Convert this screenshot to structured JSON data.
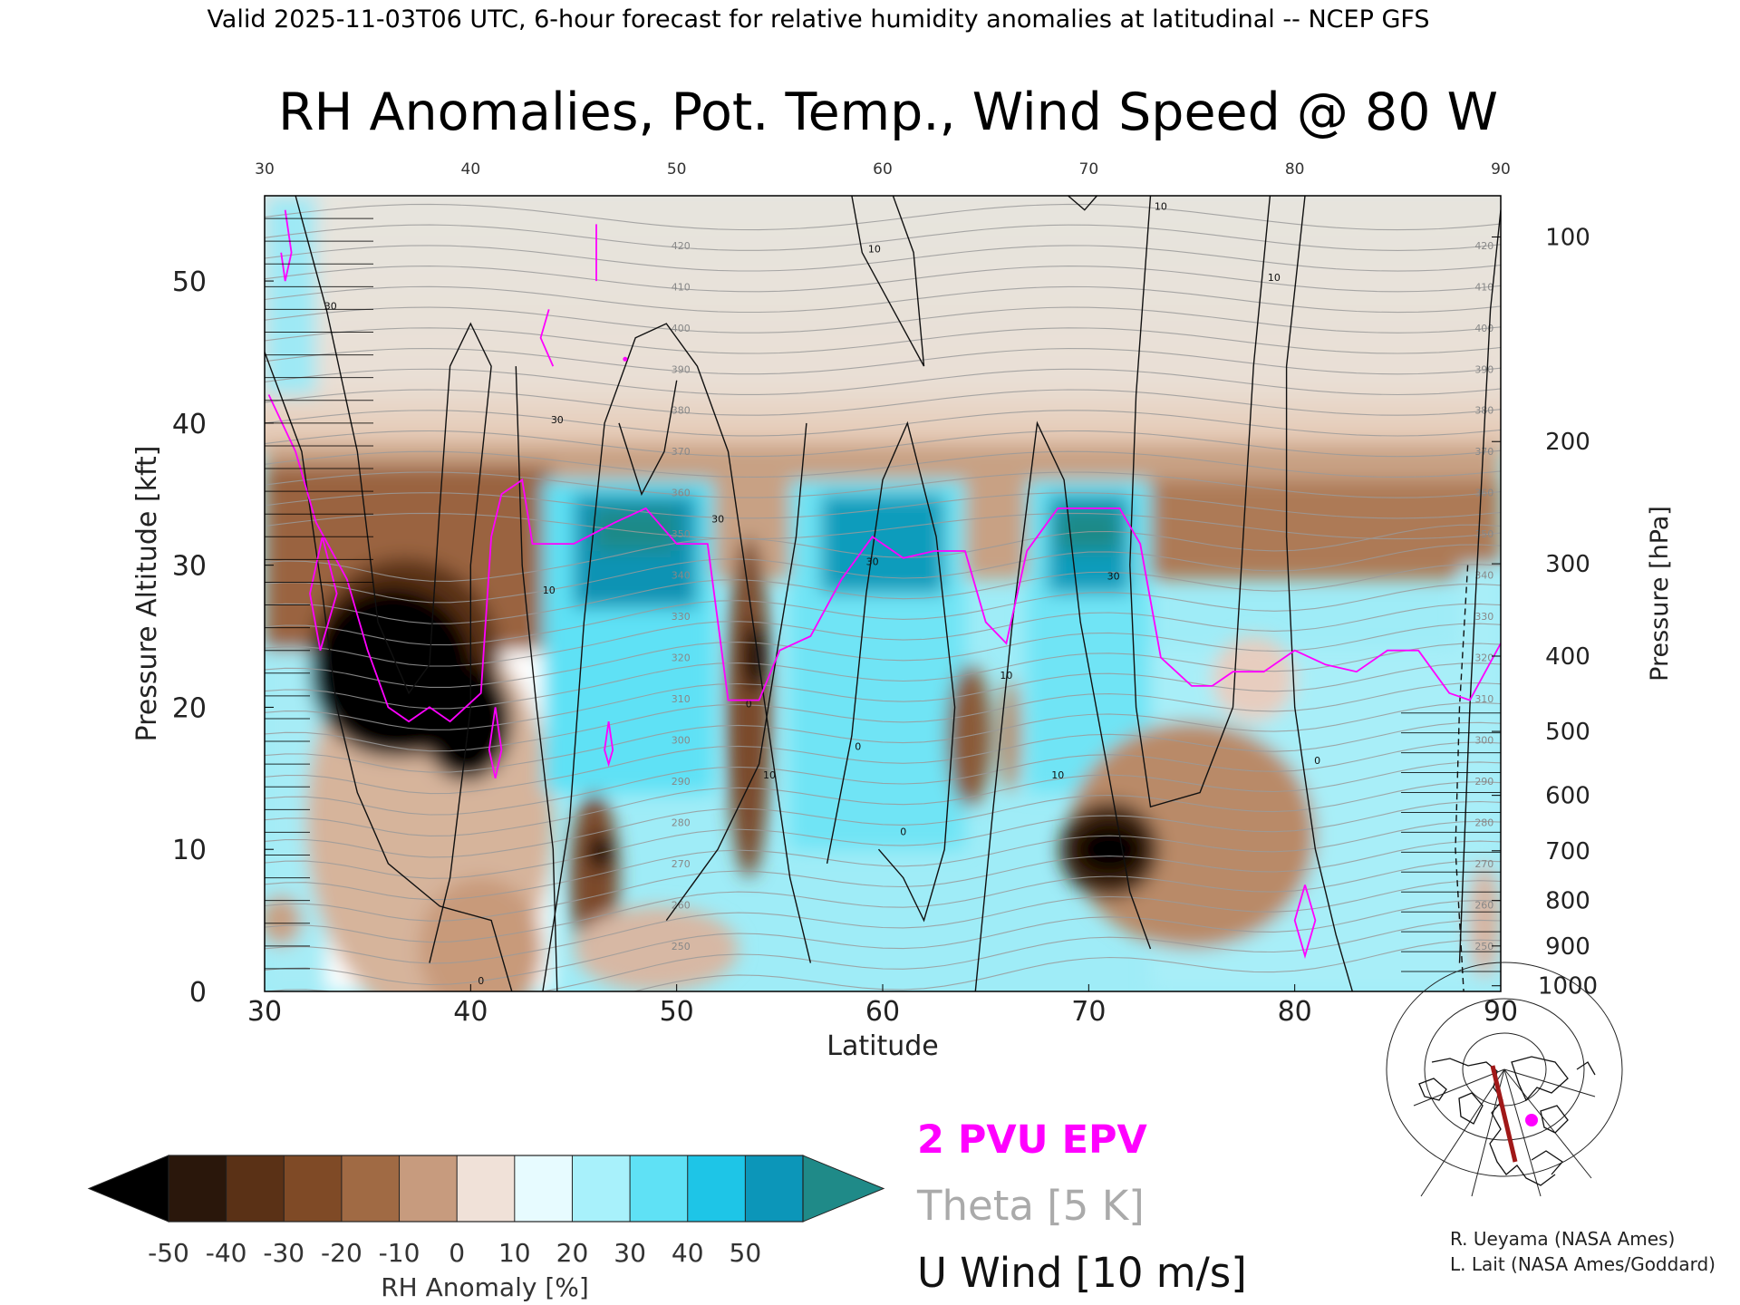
{
  "header": "Valid 2025-11-03T06 UTC, 6-hour forecast for relative humidity anomalies at latitudinal -- NCEP GFS",
  "chart_data": {
    "type": "heatmap",
    "title": "RH Anomalies, Pot. Temp., Wind Speed @ 80 W",
    "xlabel": "Latitude",
    "ylabel": "Pressure Altitude [kft]",
    "y2label": "Pressure [hPa]",
    "xlim": [
      30,
      90
    ],
    "ylim": [
      0,
      56
    ],
    "x_ticks": [
      "30",
      "40",
      "50",
      "60",
      "70",
      "80",
      "90"
    ],
    "y_ticks": [
      "0",
      "10",
      "20",
      "30",
      "40",
      "50"
    ],
    "pressure_ticks": [
      {
        "label": "100",
        "kft": 53.1
      },
      {
        "label": "200",
        "kft": 38.7
      },
      {
        "label": "300",
        "kft": 30.1
      },
      {
        "label": "400",
        "kft": 23.6
      },
      {
        "label": "500",
        "kft": 18.3
      },
      {
        "label": "600",
        "kft": 13.8
      },
      {
        "label": "700",
        "kft": 9.9
      },
      {
        "label": "800",
        "kft": 6.4
      },
      {
        "label": "900",
        "kft": 3.2
      },
      {
        "label": "1000",
        "kft": 0.4
      }
    ],
    "colorbar": {
      "label": "RH Anomaly [%]",
      "ticks": [
        "-50",
        "-40",
        "-30",
        "-20",
        "-10",
        "0",
        "10",
        "20",
        "30",
        "40",
        "50"
      ],
      "colors": [
        "#2a170b",
        "#5a3116",
        "#7f4a26",
        "#a06a44",
        "#c79b7e",
        "#f0e1d8",
        "#e7fbff",
        "#a8f1fb",
        "#5fe1f5",
        "#1ec5e7",
        "#0c96b9"
      ],
      "under_color": "#000000",
      "over_color": "#1f8a88"
    },
    "legend": [
      {
        "label": "2 PVU EPV",
        "color": "#ff00ff"
      },
      {
        "label": "Theta [5 K]",
        "color": "#aaaaaa"
      },
      {
        "label": "U Wind [10 m/s]",
        "color": "#111111"
      }
    ],
    "epv_2pvu_kft": [
      {
        "lat": 30.2,
        "kft": 42.0
      },
      {
        "lat": 31.5,
        "kft": 38.0
      },
      {
        "lat": 32.5,
        "kft": 33.0
      },
      {
        "lat": 34.0,
        "kft": 29.0
      },
      {
        "lat": 35.0,
        "kft": 24.0
      },
      {
        "lat": 36.0,
        "kft": 20.0
      },
      {
        "lat": 37.0,
        "kft": 19.0
      },
      {
        "lat": 38.0,
        "kft": 20.0
      },
      {
        "lat": 39.0,
        "kft": 19.0
      },
      {
        "lat": 40.5,
        "kft": 21.0
      },
      {
        "lat": 41.0,
        "kft": 32.0
      },
      {
        "lat": 41.5,
        "kft": 35.0
      },
      {
        "lat": 42.5,
        "kft": 36.0
      },
      {
        "lat": 43.0,
        "kft": 31.5
      },
      {
        "lat": 45.0,
        "kft": 31.5
      },
      {
        "lat": 47.0,
        "kft": 33.0
      },
      {
        "lat": 48.5,
        "kft": 34.0
      },
      {
        "lat": 50.0,
        "kft": 31.5
      },
      {
        "lat": 51.5,
        "kft": 31.5
      },
      {
        "lat": 52.5,
        "kft": 20.5
      },
      {
        "lat": 54.0,
        "kft": 20.5
      },
      {
        "lat": 55.0,
        "kft": 24.0
      },
      {
        "lat": 56.5,
        "kft": 25.0
      },
      {
        "lat": 58.0,
        "kft": 29.0
      },
      {
        "lat": 59.5,
        "kft": 32.0
      },
      {
        "lat": 61.0,
        "kft": 30.5
      },
      {
        "lat": 62.5,
        "kft": 31.0
      },
      {
        "lat": 64.0,
        "kft": 31.0
      },
      {
        "lat": 65.0,
        "kft": 26.0
      },
      {
        "lat": 66.0,
        "kft": 24.5
      },
      {
        "lat": 67.0,
        "kft": 31.0
      },
      {
        "lat": 68.5,
        "kft": 34.0
      },
      {
        "lat": 70.0,
        "kft": 34.0
      },
      {
        "lat": 71.5,
        "kft": 34.0
      },
      {
        "lat": 72.5,
        "kft": 31.5
      },
      {
        "lat": 73.5,
        "kft": 23.5
      },
      {
        "lat": 75.0,
        "kft": 21.5
      },
      {
        "lat": 76.0,
        "kft": 21.5
      },
      {
        "lat": 77.0,
        "kft": 22.5
      },
      {
        "lat": 78.5,
        "kft": 22.5
      },
      {
        "lat": 80.0,
        "kft": 24.0
      },
      {
        "lat": 81.5,
        "kft": 23.0
      },
      {
        "lat": 83.0,
        "kft": 22.5
      },
      {
        "lat": 84.5,
        "kft": 24.0
      },
      {
        "lat": 86.0,
        "kft": 24.0
      },
      {
        "lat": 87.5,
        "kft": 21.0
      },
      {
        "lat": 88.5,
        "kft": 20.5
      },
      {
        "lat": 90.0,
        "kft": 24.5
      }
    ],
    "rh_features": [
      {
        "name": "stratosphere dry",
        "value": -8,
        "lat": [
          30,
          90
        ],
        "kft": [
          38,
          56
        ]
      },
      {
        "name": "dry tropopause band",
        "value": -20,
        "lat": [
          30,
          90
        ],
        "kft": [
          29,
          38
        ]
      },
      {
        "name": "moist upper band 1",
        "value": 35,
        "lat": [
          43,
          52
        ],
        "kft": [
          22,
          36
        ]
      },
      {
        "name": "moist upper band 2",
        "value": 35,
        "lat": [
          55,
          64
        ],
        "kft": [
          20,
          36
        ]
      },
      {
        "name": "moist upper band 3",
        "value": 35,
        "lat": [
          67,
          73
        ],
        "kft": [
          22,
          36
        ]
      },
      {
        "name": "very dry pocket",
        "value": -55,
        "lat": [
          32,
          42
        ],
        "kft": [
          15,
          31
        ]
      },
      {
        "name": "very dry spot",
        "value": -55,
        "lat": [
          70,
          72
        ],
        "kft": [
          8,
          12
        ]
      }
    ]
  },
  "theta_labels": [
    "420",
    "410",
    "400",
    "390",
    "380",
    "370",
    "360",
    "350",
    "340",
    "330",
    "320",
    "310",
    "300",
    "290",
    "280",
    "270",
    "260",
    "250"
  ],
  "wind_labels": [
    "10",
    "30",
    "0"
  ],
  "credits": [
    "R. Ueyama (NASA Ames)",
    "L. Lait (NASA Ames/Goddard)"
  ]
}
